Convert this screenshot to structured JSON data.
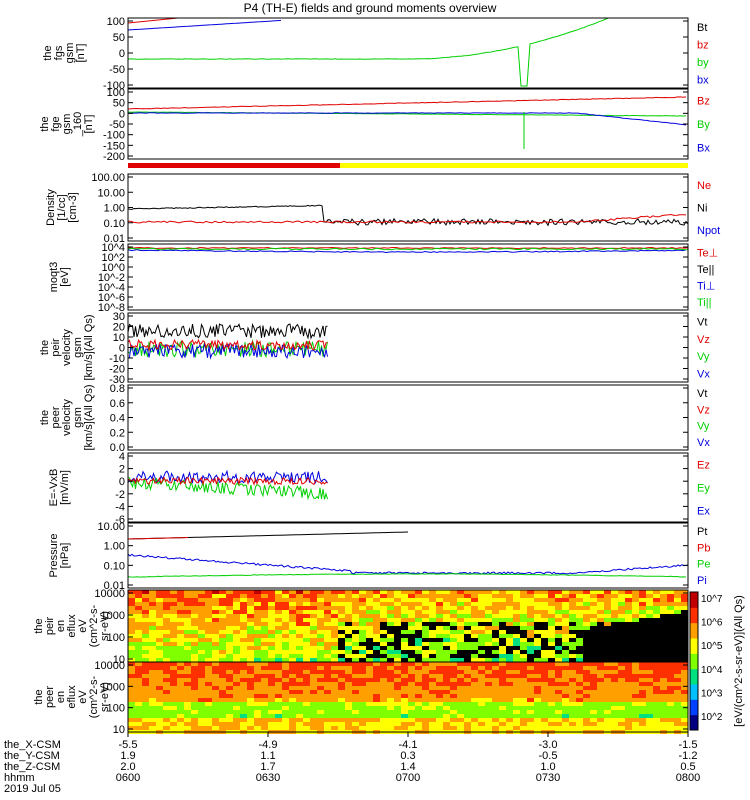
{
  "title": "P4 (TH-E) fields and ground moments overview",
  "colors": {
    "black": "#000000",
    "red": "#e00000",
    "green": "#00d000",
    "blue": "#0000e0",
    "yellow": "#ffff00"
  },
  "chart_data": {
    "type": "line",
    "x_ticks": [
      "0600",
      "0630",
      "0700",
      "0730",
      "0800"
    ],
    "x_rows": [
      {
        "label": "the_X-CSM",
        "values": [
          "-5.5",
          "-4.9",
          "-4.1",
          "-3.0",
          "-1.5"
        ]
      },
      {
        "label": "the_Y-CSM",
        "values": [
          "1.9",
          "1.1",
          "0.3",
          "-0.5",
          "-1.2"
        ]
      },
      {
        "label": "the_Z-CSM",
        "values": [
          "2.0",
          "1.7",
          "1.4",
          "1.0",
          "0.5"
        ]
      },
      {
        "label": "hhmm",
        "values": [
          "0600",
          "0630",
          "0700",
          "0730",
          "0800"
        ]
      }
    ],
    "date_label": "2019 Jul 05",
    "panels": [
      {
        "id": "fgs",
        "ylabel": [
          "the",
          "fgs",
          "gsm",
          "[nT]"
        ],
        "yticks": [
          "100",
          "50",
          "0",
          "-50",
          "-100"
        ],
        "legend": [
          {
            "text": "Bt",
            "color": "black"
          },
          {
            "text": "bz",
            "color": "red"
          },
          {
            "text": "by",
            "color": "green"
          },
          {
            "text": "bx",
            "color": "blue"
          }
        ]
      },
      {
        "id": "fge",
        "ylabel": [
          "the",
          "fge",
          "gsm",
          "_160",
          "[nT]"
        ],
        "yticks": [
          "100",
          "50",
          "0",
          "-50",
          "-100",
          "-150",
          "-200"
        ],
        "legend": [
          {
            "text": "Bz",
            "color": "red"
          },
          {
            "text": "By",
            "color": "green"
          },
          {
            "text": "Bx",
            "color": "blue"
          }
        ]
      },
      {
        "id": "density",
        "ylabel": [
          "Density",
          "[1/cc]",
          "[cm-3]"
        ],
        "yticks": [
          "100.00",
          "10.00",
          "1.00",
          "0.10",
          "0.01"
        ],
        "legend": [
          {
            "text": "Ne",
            "color": "red"
          },
          {
            "text": "Ni",
            "color": "black"
          },
          {
            "text": "Npot",
            "color": "blue"
          }
        ]
      },
      {
        "id": "temp",
        "ylabel": [
          "moqt3",
          "[eV]"
        ],
        "yticks": [
          "10^4",
          "10^2",
          "10^0",
          "10^-2",
          "10^-4",
          "10^-6",
          "10^-8"
        ],
        "legend": [
          {
            "text": "Te⊥",
            "color": "red"
          },
          {
            "text": "Te||",
            "color": "black"
          },
          {
            "text": "Ti⊥",
            "color": "blue"
          },
          {
            "text": "Ti||",
            "color": "green"
          }
        ]
      },
      {
        "id": "peirv",
        "ylabel": [
          "the",
          "peir",
          "velocity",
          "gsm",
          "[km/s](All Qs)"
        ],
        "yticks": [
          "30",
          "20",
          "10",
          "0",
          "-10",
          "-20",
          "-30"
        ],
        "legend": [
          {
            "text": "Vt",
            "color": "black"
          },
          {
            "text": "Vz",
            "color": "red"
          },
          {
            "text": "Vy",
            "color": "green"
          },
          {
            "text": "Vx",
            "color": "blue"
          }
        ]
      },
      {
        "id": "peerv",
        "ylabel": [
          "the",
          "peer",
          "velocity",
          "gsm",
          "[km/s](All Qs)"
        ],
        "yticks": [
          "0.8",
          "0.6",
          "0.4",
          "0.2",
          "0.0"
        ],
        "legend": [
          {
            "text": "Vt",
            "color": "black"
          },
          {
            "text": "Vz",
            "color": "red"
          },
          {
            "text": "Vy",
            "color": "green"
          },
          {
            "text": "Vx",
            "color": "blue"
          }
        ]
      },
      {
        "id": "efield",
        "ylabel": [
          "E=-VxB",
          "[mV/m]"
        ],
        "yticks": [
          "4",
          "2",
          "0",
          "-2",
          "-4",
          "-6"
        ],
        "legend": [
          {
            "text": "Ez",
            "color": "red"
          },
          {
            "text": "Ey",
            "color": "green"
          },
          {
            "text": "Ex",
            "color": "blue"
          }
        ]
      },
      {
        "id": "pressure",
        "ylabel": [
          "Pressure",
          "[nPa]"
        ],
        "yticks": [
          "10.00",
          "1.00",
          "0.10",
          "0.01"
        ],
        "legend": [
          {
            "text": "Pt",
            "color": "black"
          },
          {
            "text": "Pb",
            "color": "red"
          },
          {
            "text": "Pe",
            "color": "green"
          },
          {
            "text": "Pi",
            "color": "blue"
          }
        ]
      },
      {
        "id": "peir_spec",
        "ylabel": [
          "the",
          "peir",
          "en",
          "eflux",
          "eV",
          "(cm^2-s-",
          "sr-eV)"
        ],
        "yticks": [
          "10000",
          "1000",
          "100",
          "10"
        ]
      },
      {
        "id": "peer_spec",
        "ylabel": [
          "the",
          "peer",
          "en",
          "eflux",
          "eV",
          "(cm^2-s-",
          "sr-eV)"
        ],
        "yticks": [
          "10000",
          "1000",
          "100",
          "10"
        ]
      }
    ],
    "colorbar_label": "[eV/(cm^2-s-sr-eV)](All Qs)",
    "colorbar_ticks": [
      "10^7",
      "10^6",
      "10^5",
      "10^4",
      "10^3",
      "10^2"
    ]
  }
}
